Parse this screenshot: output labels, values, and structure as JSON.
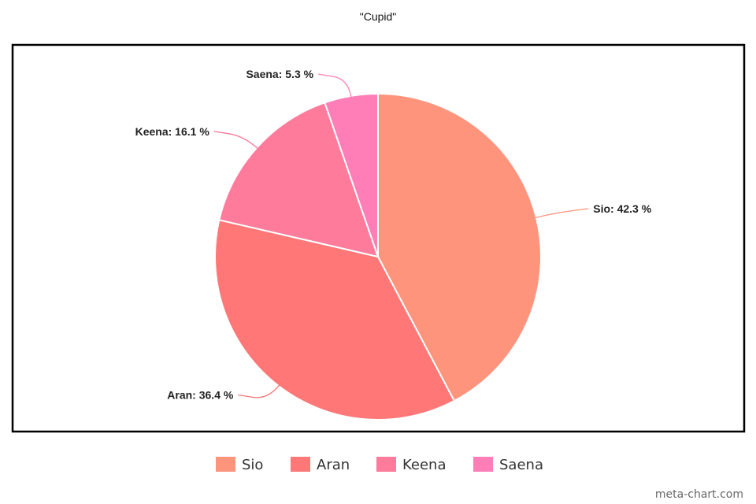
{
  "chart_data": {
    "type": "pie",
    "title": "\"Cupid\"",
    "slices": [
      {
        "name": "Sio",
        "value": 42.3,
        "label": "Sio: 42.3 %",
        "color": "#FF947D"
      },
      {
        "name": "Aran",
        "value": 36.4,
        "label": "Aran: 36.4 %",
        "color": "#FF7777"
      },
      {
        "name": "Keena",
        "value": 16.1,
        "label": "Keena: 16.1 %",
        "color": "#FF7B9C"
      },
      {
        "name": "Saena",
        "value": 5.3,
        "label": "Saena: 5.3 %",
        "color": "#FF7EB7"
      }
    ],
    "legend": {
      "position": "bottom"
    }
  },
  "watermark": "meta-chart.com"
}
